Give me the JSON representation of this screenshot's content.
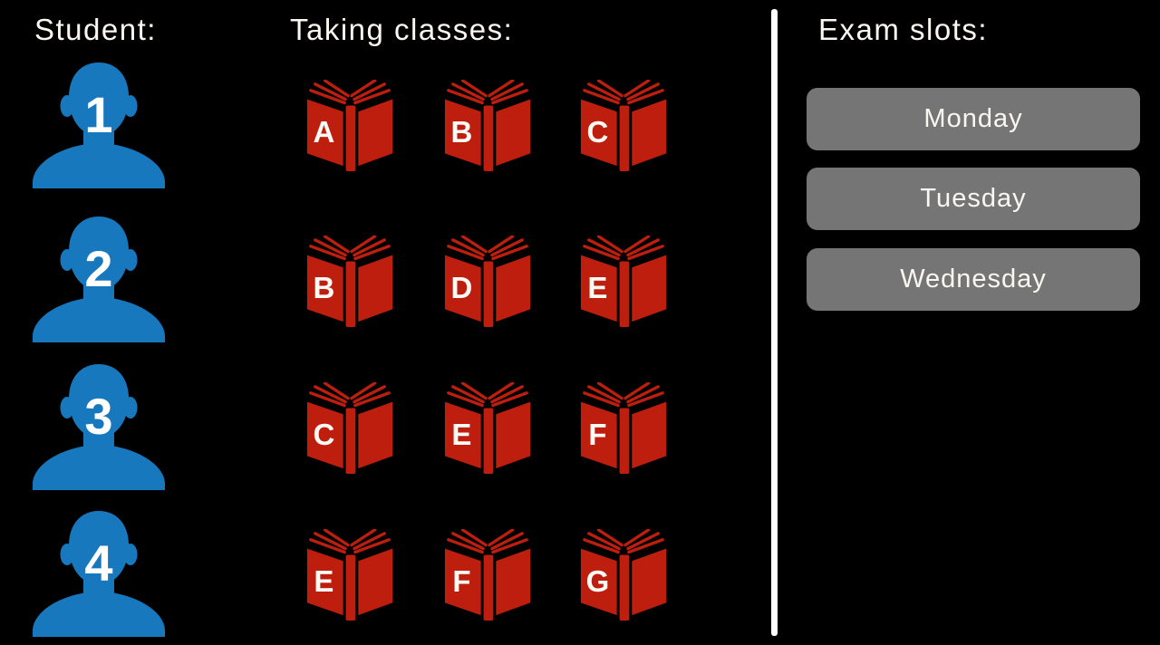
{
  "headers": {
    "student": "Student:",
    "classes": "Taking classes:",
    "exam_slots": "Exam slots:"
  },
  "students": [
    {
      "number": "1",
      "classes": [
        "A",
        "B",
        "C"
      ]
    },
    {
      "number": "2",
      "classes": [
        "B",
        "D",
        "E"
      ]
    },
    {
      "number": "3",
      "classes": [
        "C",
        "E",
        "F"
      ]
    },
    {
      "number": "4",
      "classes": [
        "E",
        "F",
        "G"
      ]
    }
  ],
  "exam_slots": [
    "Monday",
    "Tuesday",
    "Wednesday"
  ],
  "colors": {
    "background": "#000000",
    "student_blue": "#1878BE",
    "book_red": "#BE1E0D",
    "button_gray": "#757575",
    "divider_white": "#FFFFFF",
    "text_white": "#FAF7F0"
  },
  "icons": {
    "student": "person-silhouette-icon",
    "class_book": "open-book-icon"
  }
}
